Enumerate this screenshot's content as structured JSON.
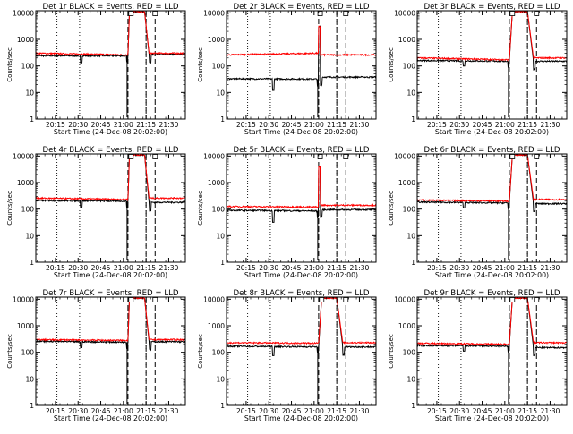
{
  "chart_data": {
    "type": "line",
    "yscale": "log",
    "ylim": [
      1,
      12000
    ],
    "xlim": [
      "20:02",
      "21:41"
    ],
    "x_ticks": [
      "20:15",
      "20:30",
      "20:45",
      "21:00",
      "21:15",
      "21:30"
    ],
    "y_ticks": [
      "1",
      "10",
      "100",
      "1000",
      "10000"
    ],
    "ylabel": "Counts/sec",
    "xlabel": "Start Time (24-Dec-08 20:02:00)",
    "colors": {
      "events": "#000000",
      "lld": "#ff0000"
    },
    "panels": [
      {
        "title": "Det 1r BLACK = Events, RED = LLD",
        "dotted_times": [
          "20:16",
          "20:31",
          "21:15"
        ],
        "dashed_times": [
          "21:03",
          "21:15",
          "21:21"
        ],
        "events_levels": {
          "start": 240,
          "end": 240,
          "dip_time": "20:32",
          "dip_value": 130,
          "post": 270
        },
        "lld_levels": {
          "start": 300,
          "end": 260,
          "post": 300
        },
        "flare": {
          "rise": "21:03",
          "peak_start": "21:04",
          "peak_end": "21:14",
          "fall_end": "21:17",
          "peak": 11000
        },
        "markers": [
          "21:05",
          "21:21"
        ]
      },
      {
        "title": "Det 2r BLACK = Events, RED = LLD",
        "dotted_times": [
          "20:16",
          "20:31",
          "21:15"
        ],
        "dashed_times": [
          "21:03",
          "21:15",
          "21:21"
        ],
        "events_levels": {
          "start": 33,
          "end": 32,
          "dip_time": "20:33",
          "dip_value": 12,
          "post": 38
        },
        "lld_levels": {
          "start": 260,
          "end": 300,
          "post": 260
        },
        "flare": {
          "rise": "21:03",
          "peak_start": "21:03",
          "peak_end": "21:04",
          "fall_end": "21:04",
          "peak": 3000
        },
        "markers": [
          "21:04",
          "21:21"
        ]
      },
      {
        "title": "Det 3r BLACK = Events, RED = LLD",
        "dotted_times": [
          "20:16",
          "20:31",
          "21:15"
        ],
        "dashed_times": [
          "21:03",
          "21:15",
          "21:21"
        ],
        "events_levels": {
          "start": 160,
          "end": 150,
          "dip_time": "20:33",
          "dip_value": 100,
          "post": 150
        },
        "lld_levels": {
          "start": 200,
          "end": 170,
          "post": 200
        },
        "flare": {
          "rise": "21:03",
          "peak_start": "21:05",
          "peak_end": "21:15",
          "fall_end": "21:19",
          "peak": 11000
        },
        "markers": [
          "21:05",
          "21:21"
        ]
      },
      {
        "title": "Det 4r BLACK = Events, RED = LLD",
        "dotted_times": [
          "20:16",
          "20:31",
          "21:15"
        ],
        "dashed_times": [
          "21:03",
          "21:15",
          "21:21"
        ],
        "events_levels": {
          "start": 210,
          "end": 200,
          "dip_time": "20:32",
          "dip_value": 110,
          "post": 180
        },
        "lld_levels": {
          "start": 260,
          "end": 230,
          "post": 260
        },
        "flare": {
          "rise": "21:03",
          "peak_start": "21:04",
          "peak_end": "21:14",
          "fall_end": "21:17",
          "peak": 11000
        },
        "markers": [
          "21:05",
          "21:21"
        ]
      },
      {
        "title": "Det 5r BLACK = Events, RED = LLD",
        "dotted_times": [
          "20:16",
          "20:31",
          "21:15"
        ],
        "dashed_times": [
          "21:03",
          "21:15",
          "21:21"
        ],
        "events_levels": {
          "start": 90,
          "end": 85,
          "dip_time": "20:33",
          "dip_value": 32,
          "post": 95
        },
        "lld_levels": {
          "start": 125,
          "end": 120,
          "post": 140
        },
        "flare": {
          "rise": "21:03",
          "peak_start": "21:03",
          "peak_end": "21:04",
          "fall_end": "21:04",
          "peak": 4000
        },
        "markers": [
          "21:04",
          "21:21"
        ]
      },
      {
        "title": "Det 6r BLACK = Events, RED = LLD",
        "dotted_times": [
          "20:16",
          "20:31",
          "21:15"
        ],
        "dashed_times": [
          "21:03",
          "21:15",
          "21:21"
        ],
        "events_levels": {
          "start": 185,
          "end": 170,
          "dip_time": "20:33",
          "dip_value": 110,
          "post": 160
        },
        "lld_levels": {
          "start": 220,
          "end": 200,
          "post": 230
        },
        "flare": {
          "rise": "21:03",
          "peak_start": "21:05",
          "peak_end": "21:15",
          "fall_end": "21:19",
          "peak": 11000
        },
        "markers": [
          "21:05",
          "21:21"
        ]
      },
      {
        "title": "Det 7r BLACK = Events, RED = LLD",
        "dotted_times": [
          "20:16",
          "20:31",
          "21:15"
        ],
        "dashed_times": [
          "21:03",
          "21:15",
          "21:21"
        ],
        "events_levels": {
          "start": 260,
          "end": 240,
          "dip_time": "20:32",
          "dip_value": 150,
          "post": 250
        },
        "lld_levels": {
          "start": 300,
          "end": 280,
          "post": 300
        },
        "flare": {
          "rise": "21:03",
          "peak_start": "21:04",
          "peak_end": "21:14",
          "fall_end": "21:17",
          "peak": 11000
        },
        "markers": [
          "21:05",
          "21:21"
        ]
      },
      {
        "title": "Det 8r BLACK = Events, RED = LLD",
        "dotted_times": [
          "20:16",
          "20:31",
          "21:15"
        ],
        "dashed_times": [
          "21:03",
          "21:15",
          "21:21"
        ],
        "events_levels": {
          "start": 170,
          "end": 160,
          "dip_time": "20:33",
          "dip_value": 75,
          "post": 160
        },
        "lld_levels": {
          "start": 230,
          "end": 220,
          "post": 230
        },
        "flare": {
          "rise": "21:03",
          "peak_start": "21:05",
          "peak_end": "21:15",
          "fall_end": "21:19",
          "peak": 11000
        },
        "markers": [
          "21:05",
          "21:21"
        ]
      },
      {
        "title": "Det 9r BLACK = Events, RED = LLD",
        "dotted_times": [
          "20:16",
          "20:31",
          "21:15"
        ],
        "dashed_times": [
          "21:03",
          "21:15",
          "21:21"
        ],
        "events_levels": {
          "start": 180,
          "end": 170,
          "dip_time": "20:33",
          "dip_value": 110,
          "post": 150
        },
        "lld_levels": {
          "start": 220,
          "end": 200,
          "post": 230
        },
        "flare": {
          "rise": "21:03",
          "peak_start": "21:05",
          "peak_end": "21:15",
          "fall_end": "21:19",
          "peak": 11000
        },
        "markers": [
          "21:05",
          "21:21"
        ]
      }
    ]
  }
}
